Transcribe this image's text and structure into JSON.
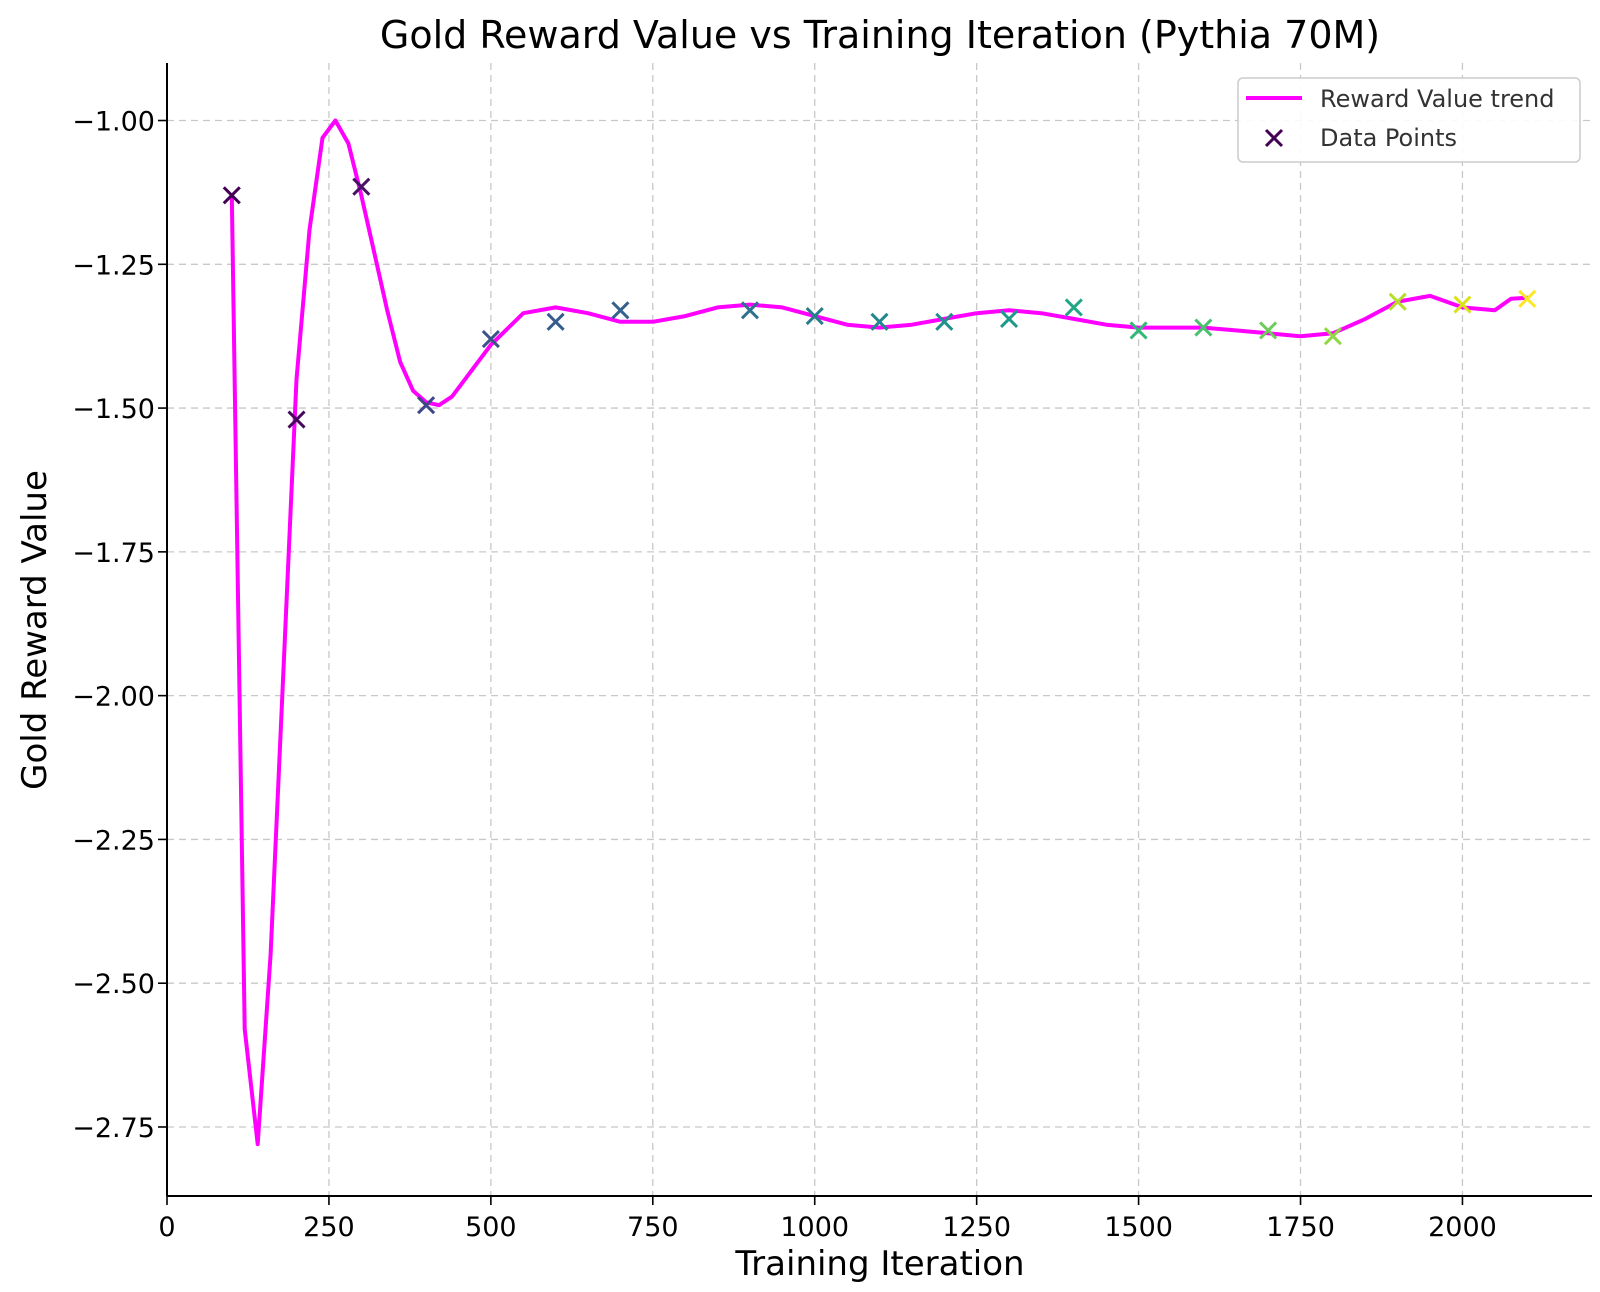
{
  "chart_data": {
    "type": "line",
    "title": "Gold Reward Value vs Training Iteration (Pythia 70M)",
    "xlabel": "Training Iteration",
    "ylabel": "Gold Reward Value",
    "xlim": [
      0,
      2200
    ],
    "ylim": [
      -2.87,
      -0.9
    ],
    "x_ticks": [
      0,
      250,
      500,
      750,
      1000,
      1250,
      1500,
      1750,
      2000
    ],
    "x_tick_labels": [
      "0",
      "250",
      "500",
      "750",
      "1000",
      "1250",
      "1500",
      "1750",
      "2000"
    ],
    "y_ticks": [
      -1.0,
      -1.25,
      -1.5,
      -1.75,
      -2.0,
      -2.25,
      -2.5,
      -2.75
    ],
    "y_tick_labels": [
      "−1.00",
      "−1.25",
      "−1.50",
      "−1.75",
      "−2.00",
      "−2.25",
      "−2.50",
      "−2.75"
    ],
    "grid": true,
    "legend_position": "top-right",
    "legend": [
      "Reward Value trend",
      "Data Points"
    ],
    "series": [
      {
        "name": "Reward Value trend",
        "kind": "line",
        "color": "#ff00ff",
        "x": [
          100,
          120,
          140,
          160,
          180,
          200,
          220,
          240,
          260,
          280,
          300,
          320,
          340,
          360,
          380,
          400,
          420,
          440,
          460,
          480,
          500,
          550,
          600,
          650,
          700,
          750,
          800,
          850,
          900,
          950,
          1000,
          1050,
          1100,
          1150,
          1200,
          1250,
          1300,
          1350,
          1400,
          1450,
          1500,
          1550,
          1600,
          1650,
          1700,
          1750,
          1800,
          1850,
          1900,
          1950,
          2000,
          2050,
          2075,
          2100
        ],
        "y": [
          -1.13,
          -2.58,
          -2.78,
          -2.45,
          -1.95,
          -1.45,
          -1.19,
          -1.03,
          -1.0,
          -1.04,
          -1.13,
          -1.23,
          -1.33,
          -1.42,
          -1.47,
          -1.49,
          -1.495,
          -1.48,
          -1.45,
          -1.42,
          -1.39,
          -1.335,
          -1.325,
          -1.335,
          -1.35,
          -1.35,
          -1.34,
          -1.325,
          -1.32,
          -1.325,
          -1.34,
          -1.355,
          -1.36,
          -1.355,
          -1.345,
          -1.335,
          -1.33,
          -1.335,
          -1.345,
          -1.355,
          -1.36,
          -1.36,
          -1.36,
          -1.365,
          -1.37,
          -1.375,
          -1.37,
          -1.345,
          -1.315,
          -1.305,
          -1.325,
          -1.33,
          -1.31,
          -1.308
        ]
      },
      {
        "name": "Data Points",
        "kind": "scatter",
        "marker": "x",
        "x": [
          100,
          200,
          300,
          400,
          500,
          600,
          700,
          900,
          1000,
          1100,
          1200,
          1300,
          1400,
          1500,
          1600,
          1700,
          1800,
          1900,
          2000,
          2100
        ],
        "y": [
          -1.13,
          -1.52,
          -1.115,
          -1.495,
          -1.38,
          -1.35,
          -1.33,
          -1.33,
          -1.34,
          -1.35,
          -1.35,
          -1.345,
          -1.325,
          -1.365,
          -1.36,
          -1.365,
          -1.375,
          -1.315,
          -1.32,
          -1.31
        ],
        "colors": [
          "#440154",
          "#46085c",
          "#471164",
          "#3f4788",
          "#3b528b",
          "#365c8d",
          "#33638d",
          "#2c728e",
          "#287c8e",
          "#24868e",
          "#21908d",
          "#1f9a8a",
          "#22a785",
          "#35b779",
          "#4ac16d",
          "#6ccd5a",
          "#8fd744",
          "#b5de2b",
          "#dae319",
          "#fde725"
        ]
      }
    ]
  }
}
